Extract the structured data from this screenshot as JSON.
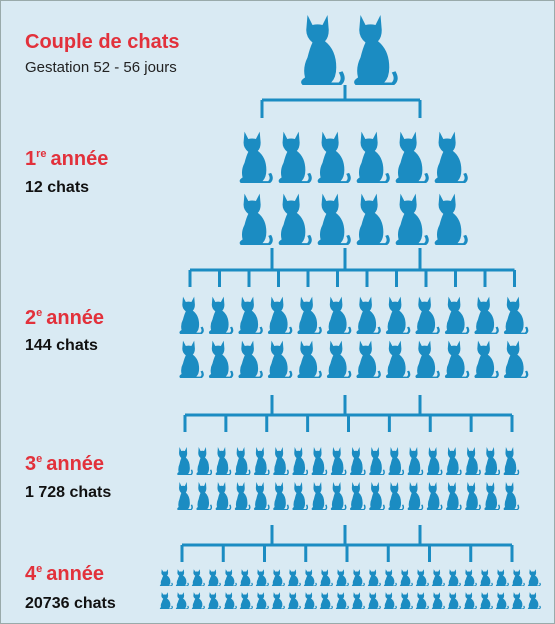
{
  "header": {
    "title": "Couple de chats",
    "subtitle": "Gestation 52 - 56 jours"
  },
  "levels": [
    {
      "number": "1",
      "suffix": "re",
      "label": "année",
      "count": "12 chats"
    },
    {
      "number": "2",
      "suffix": "e",
      "label": "année",
      "count": "144 chats"
    },
    {
      "number": "3",
      "suffix": "e",
      "label": "année",
      "count": "1 728 chats"
    },
    {
      "number": "4",
      "suffix": "e",
      "label": "année",
      "count": "20736 chats"
    }
  ]
}
